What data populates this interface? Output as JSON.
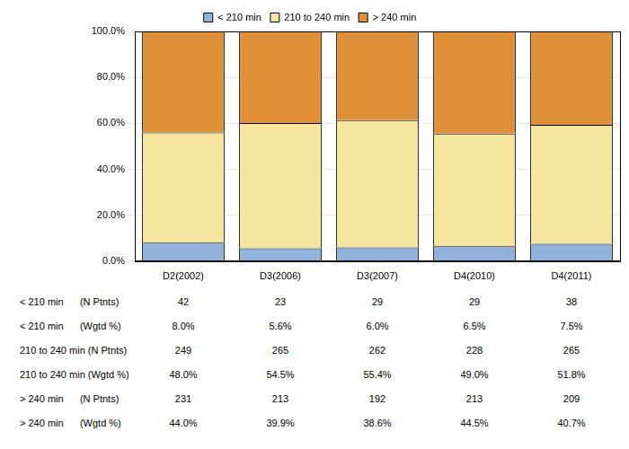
{
  "chart_data": {
    "type": "bar",
    "stacked": true,
    "categories": [
      "D2(2002)",
      "D3(2006)",
      "D3(2007)",
      "D4(2010)",
      "D4(2011)"
    ],
    "series": [
      {
        "name": "< 210 min",
        "color": "#8fb1da",
        "values": [
          8.0,
          5.6,
          6.0,
          6.5,
          7.5
        ]
      },
      {
        "name": "210 to 240 min",
        "color": "#f6e59f",
        "values": [
          48.0,
          54.5,
          55.4,
          49.0,
          51.8
        ]
      },
      {
        "name": "> 240 min",
        "color": "#df9038",
        "values": [
          44.0,
          39.9,
          38.6,
          44.5,
          40.7
        ]
      }
    ],
    "ylim": [
      0,
      100
    ],
    "yticks": [
      {
        "value": 0,
        "label": "0.0%"
      },
      {
        "value": 20,
        "label": "20.0%"
      },
      {
        "value": 40,
        "label": "40.0%"
      },
      {
        "value": 60,
        "label": "60.0%"
      },
      {
        "value": 80,
        "label": "80.0%"
      },
      {
        "value": 100,
        "label": "100.0%"
      }
    ],
    "grid": true,
    "legend": "top",
    "table": {
      "rows": [
        {
          "label": "< 210 min      (N Ptnts)",
          "cells": [
            42,
            23,
            29,
            29,
            38
          ]
        },
        {
          "label": "< 210 min      (Wgtd %)",
          "cells": [
            "8.0%",
            "5.6%",
            "6.0%",
            "6.5%",
            "7.5%"
          ]
        },
        {
          "label": "210 to 240 min (N Ptnts)",
          "cells": [
            249,
            265,
            262,
            228,
            265
          ]
        },
        {
          "label": "210 to 240 min (Wgtd %)",
          "cells": [
            "48.0%",
            "54.5%",
            "55.4%",
            "49.0%",
            "51.8%"
          ]
        },
        {
          "label": "> 240 min      (N Ptnts)",
          "cells": [
            231,
            213,
            192,
            213,
            209
          ]
        },
        {
          "label": "> 240 min      (Wgtd %)",
          "cells": [
            "44.0%",
            "39.9%",
            "38.6%",
            "44.5%",
            "40.7%"
          ]
        }
      ]
    }
  }
}
